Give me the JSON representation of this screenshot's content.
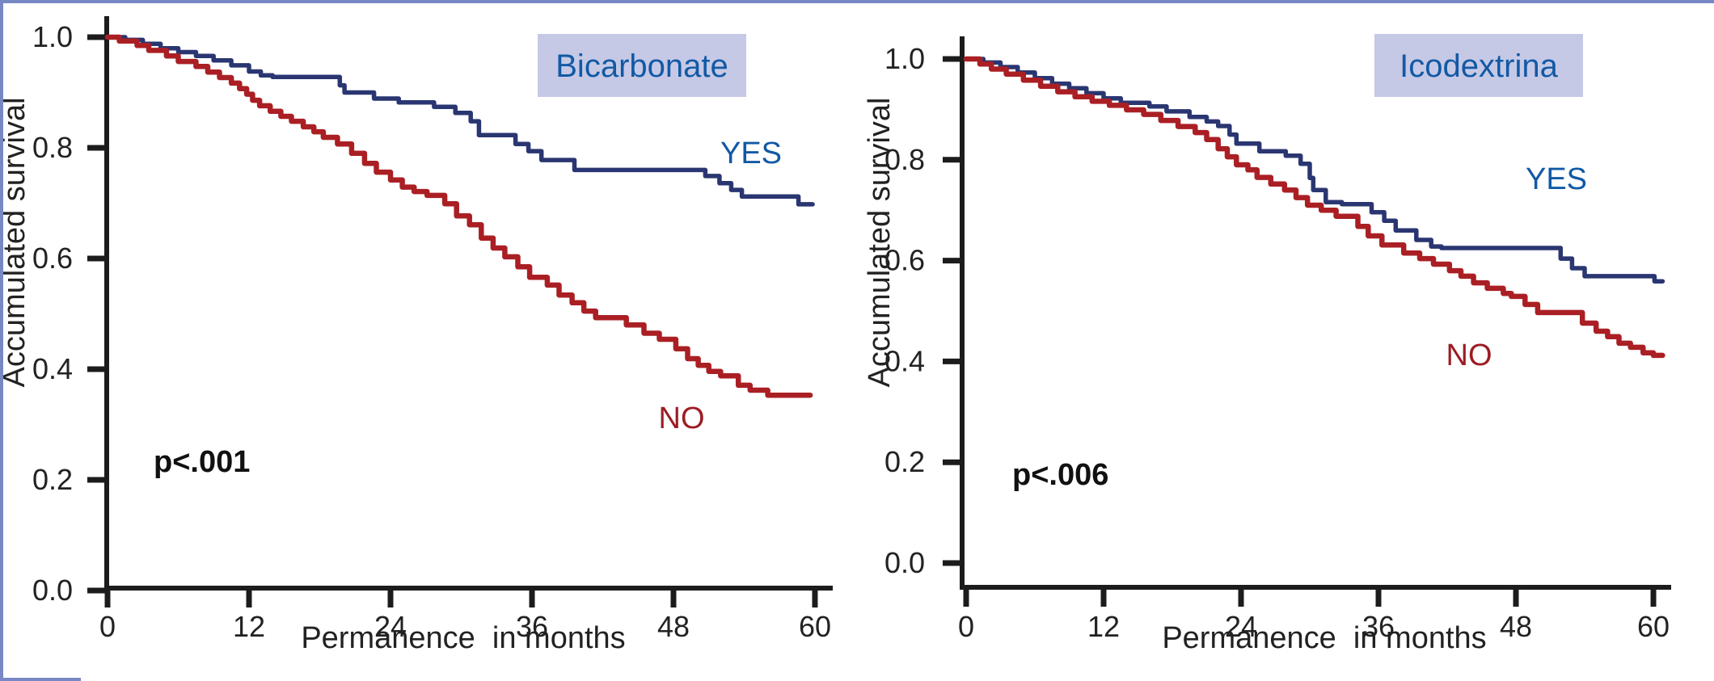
{
  "figure": {
    "background": "#ffffff",
    "frame_color": "#7888c4",
    "axis_color": "#1c1c1c",
    "title_box_color": "#c5c9e6",
    "title_text_color": "#1259a5"
  },
  "chart_data": [
    {
      "type": "line",
      "subtype": "kaplan-meier-step",
      "title": "Bicarbonate",
      "p_value": "p<.001",
      "xlabel": "Permanence  in months",
      "ylabel": "Accumulated survival",
      "xlim": [
        0,
        60
      ],
      "ylim": [
        0.0,
        1.0
      ],
      "grid": false,
      "xtick_labels": [
        "0",
        "12",
        "24",
        "36",
        "48",
        "60"
      ],
      "ytick_labels": [
        "1.0",
        "0.8",
        "0.6",
        "0.4",
        "0.2",
        "0.0"
      ],
      "series": [
        {
          "name": "YES",
          "color": "#2a3671",
          "label_color": "#1259a5",
          "end_month": 59.8,
          "steps": [
            [
              0,
              1.0
            ],
            [
              1.5,
              0.995
            ],
            [
              3,
              0.988
            ],
            [
              4.5,
              0.98
            ],
            [
              6,
              0.973
            ],
            [
              7.5,
              0.966
            ],
            [
              9,
              0.958
            ],
            [
              10.5,
              0.949
            ],
            [
              12,
              0.938
            ],
            [
              13,
              0.931
            ],
            [
              14,
              0.928
            ],
            [
              19.7,
              0.913
            ],
            [
              20.1,
              0.9
            ],
            [
              22.6,
              0.889
            ],
            [
              24.7,
              0.882
            ],
            [
              27.7,
              0.874
            ],
            [
              29.5,
              0.863
            ],
            [
              30.8,
              0.848
            ],
            [
              31.5,
              0.823
            ],
            [
              34.6,
              0.807
            ],
            [
              35.7,
              0.794
            ],
            [
              36.8,
              0.778
            ],
            [
              39.6,
              0.76
            ],
            [
              50.7,
              0.749
            ],
            [
              51.9,
              0.736
            ],
            [
              52.9,
              0.724
            ],
            [
              53.8,
              0.712
            ],
            [
              58.6,
              0.698
            ]
          ]
        },
        {
          "name": "NO",
          "color": "#aa1f24",
          "label_color": "#9c1d24",
          "end_month": 59.6,
          "steps": [
            [
              0,
              1.0
            ],
            [
              1,
              0.993
            ],
            [
              2.5,
              0.985
            ],
            [
              3.5,
              0.976
            ],
            [
              5,
              0.966
            ],
            [
              6,
              0.956
            ],
            [
              7.5,
              0.947
            ],
            [
              8.5,
              0.937
            ],
            [
              9.5,
              0.927
            ],
            [
              10.5,
              0.917
            ],
            [
              11.2,
              0.907
            ],
            [
              11.8,
              0.897
            ],
            [
              12.3,
              0.886
            ],
            [
              12.9,
              0.876
            ],
            [
              13.8,
              0.866
            ],
            [
              14.7,
              0.857
            ],
            [
              15.6,
              0.848
            ],
            [
              16.6,
              0.838
            ],
            [
              17.5,
              0.829
            ],
            [
              18.3,
              0.819
            ],
            [
              19.5,
              0.807
            ],
            [
              20.7,
              0.79
            ],
            [
              21.8,
              0.772
            ],
            [
              22.8,
              0.756
            ],
            [
              24,
              0.742
            ],
            [
              25,
              0.729
            ],
            [
              26,
              0.721
            ],
            [
              27.1,
              0.714
            ],
            [
              28.6,
              0.699
            ],
            [
              29.6,
              0.677
            ],
            [
              30.7,
              0.661
            ],
            [
              31.7,
              0.637
            ],
            [
              32.7,
              0.619
            ],
            [
              33.7,
              0.603
            ],
            [
              34.8,
              0.585
            ],
            [
              35.8,
              0.566
            ],
            [
              37.3,
              0.552
            ],
            [
              38.3,
              0.534
            ],
            [
              39.4,
              0.52
            ],
            [
              40.4,
              0.505
            ],
            [
              41.4,
              0.493
            ],
            [
              44,
              0.48
            ],
            [
              45.5,
              0.465
            ],
            [
              46.8,
              0.454
            ],
            [
              48.2,
              0.437
            ],
            [
              49.2,
              0.419
            ],
            [
              50.1,
              0.407
            ],
            [
              51,
              0.396
            ],
            [
              52,
              0.388
            ],
            [
              53.5,
              0.371
            ],
            [
              54.5,
              0.362
            ],
            [
              56,
              0.353
            ]
          ]
        }
      ]
    },
    {
      "type": "line",
      "subtype": "kaplan-meier-step",
      "title": "Icodextrina",
      "p_value": "p<.006",
      "xlabel": "Permanence  in months",
      "ylabel": "Accumulated survival",
      "xlim": [
        0,
        60
      ],
      "ylim": [
        0.0,
        1.0
      ],
      "grid": false,
      "xtick_labels": [
        "0",
        "12",
        "24",
        "36",
        "48",
        "60"
      ],
      "ytick_labels": [
        "1.0",
        "0.8",
        "0.6",
        "0.4",
        "0.2",
        "0.0"
      ],
      "series": [
        {
          "name": "YES",
          "color": "#2a3671",
          "label_color": "#1259a5",
          "end_month": 60.8,
          "steps": [
            [
              0,
              1.0
            ],
            [
              1.5,
              0.993
            ],
            [
              3,
              0.984
            ],
            [
              4.5,
              0.973
            ],
            [
              6,
              0.962
            ],
            [
              7.5,
              0.951
            ],
            [
              9,
              0.942
            ],
            [
              10.5,
              0.932
            ],
            [
              12,
              0.922
            ],
            [
              13.5,
              0.913
            ],
            [
              16,
              0.906
            ],
            [
              17.5,
              0.896
            ],
            [
              19.5,
              0.885
            ],
            [
              21,
              0.876
            ],
            [
              22,
              0.867
            ],
            [
              23,
              0.85
            ],
            [
              23.6,
              0.832
            ],
            [
              25.6,
              0.817
            ],
            [
              27.9,
              0.808
            ],
            [
              29.2,
              0.792
            ],
            [
              30.0,
              0.764
            ],
            [
              30.3,
              0.74
            ],
            [
              31.4,
              0.716
            ],
            [
              32.8,
              0.712
            ],
            [
              35.4,
              0.696
            ],
            [
              36.5,
              0.679
            ],
            [
              37.5,
              0.66
            ],
            [
              39.3,
              0.641
            ],
            [
              40.6,
              0.628
            ],
            [
              41.5,
              0.625
            ],
            [
              51.9,
              0.604
            ],
            [
              52.9,
              0.585
            ],
            [
              54,
              0.569
            ],
            [
              60.1,
              0.559
            ]
          ]
        },
        {
          "name": "NO",
          "color": "#aa1f24",
          "label_color": "#9c1d24",
          "end_month": 60.8,
          "steps": [
            [
              0,
              1.0
            ],
            [
              1.2,
              0.99
            ],
            [
              2.2,
              0.98
            ],
            [
              3.5,
              0.97
            ],
            [
              5,
              0.958
            ],
            [
              6.5,
              0.946
            ],
            [
              8,
              0.935
            ],
            [
              9.5,
              0.925
            ],
            [
              11,
              0.916
            ],
            [
              12.5,
              0.908
            ],
            [
              14,
              0.899
            ],
            [
              15.5,
              0.89
            ],
            [
              17,
              0.878
            ],
            [
              18.5,
              0.866
            ],
            [
              20,
              0.854
            ],
            [
              21,
              0.84
            ],
            [
              22,
              0.822
            ],
            [
              22.8,
              0.806
            ],
            [
              23.6,
              0.79
            ],
            [
              24.6,
              0.78
            ],
            [
              25.4,
              0.765
            ],
            [
              26.6,
              0.752
            ],
            [
              27.8,
              0.74
            ],
            [
              28.8,
              0.725
            ],
            [
              29.8,
              0.71
            ],
            [
              31,
              0.7
            ],
            [
              32.3,
              0.688
            ],
            [
              34.2,
              0.668
            ],
            [
              35.1,
              0.649
            ],
            [
              36.3,
              0.631
            ],
            [
              38.2,
              0.615
            ],
            [
              39.6,
              0.604
            ],
            [
              40.8,
              0.593
            ],
            [
              42.2,
              0.58
            ],
            [
              43.2,
              0.569
            ],
            [
              44.3,
              0.556
            ],
            [
              45.5,
              0.545
            ],
            [
              46.9,
              0.535
            ],
            [
              47.6,
              0.529
            ],
            [
              48.8,
              0.513
            ],
            [
              49.9,
              0.497
            ],
            [
              53.8,
              0.476
            ],
            [
              55,
              0.46
            ],
            [
              56,
              0.449
            ],
            [
              57,
              0.436
            ],
            [
              58,
              0.428
            ],
            [
              59.1,
              0.417
            ],
            [
              60,
              0.412
            ]
          ]
        }
      ]
    }
  ]
}
